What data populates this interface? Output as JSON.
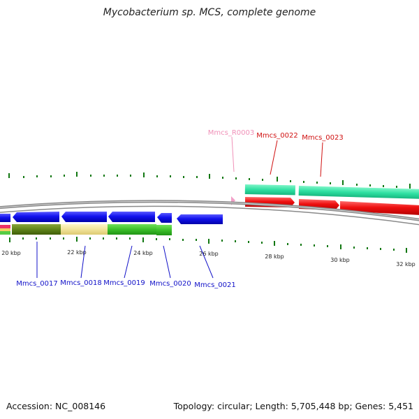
{
  "title": "Mycobacterium sp. MCS, complete genome",
  "footer": {
    "accession_label": "Accession:",
    "accession": "NC_008146",
    "topology_label": "Topology:",
    "topology": "circular",
    "length_label": "Length:",
    "length": "5,705,448 bp",
    "genes_label": "Genes:",
    "genes": "5,451"
  },
  "kbp_labels": [
    "20 kbp",
    "22 kbp",
    "24 kbp",
    "26 kbp",
    "28 kbp",
    "30 kbp",
    "32 kbp"
  ],
  "genes_top": [
    {
      "name": "Mmcs_R0003",
      "color": "#f090b8"
    },
    {
      "name": "Mmcs_0022",
      "color": "#d01010"
    },
    {
      "name": "Mmcs_0023",
      "color": "#d01010"
    }
  ],
  "genes_bottom": [
    {
      "name": "Mmcs_0017",
      "color": "#1010c8"
    },
    {
      "name": "Mmcs_0018",
      "color": "#1010c8"
    },
    {
      "name": "Mmcs_0019",
      "color": "#1010c8"
    },
    {
      "name": "Mmcs_0020",
      "color": "#1010c8"
    },
    {
      "name": "Mmcs_0021",
      "color": "#1010c8"
    }
  ],
  "colors": {
    "forward_cds": "#ee1111",
    "forward_feature": "#22dd99",
    "reverse_cds": "#1515ee",
    "gc_dark": "#4a7a10",
    "gc_light": "#f2e6a0",
    "gc_green": "#33bb22",
    "tick": "#117711",
    "backbone": "#888888",
    "rna": "#f2a0c8"
  }
}
